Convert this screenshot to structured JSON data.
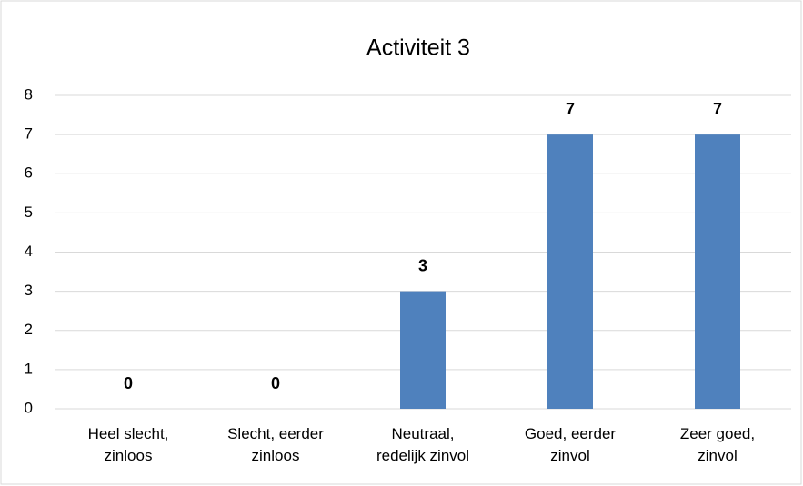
{
  "chart_data": {
    "type": "bar",
    "title": "Activiteit 3",
    "categories": [
      "Heel slecht,\nzinloos",
      "Slecht, eerder\nzinloos",
      "Neutraal,\nredelijk zinvol",
      "Goed, eerder\nzinvol",
      "Zeer goed,\nzinvol"
    ],
    "values": [
      0,
      0,
      3,
      7,
      7
    ],
    "color": "#4f81bd",
    "ylim": [
      0,
      8
    ],
    "yticks": [
      0,
      1,
      2,
      3,
      4,
      5,
      6,
      7,
      8
    ],
    "grid": true
  }
}
